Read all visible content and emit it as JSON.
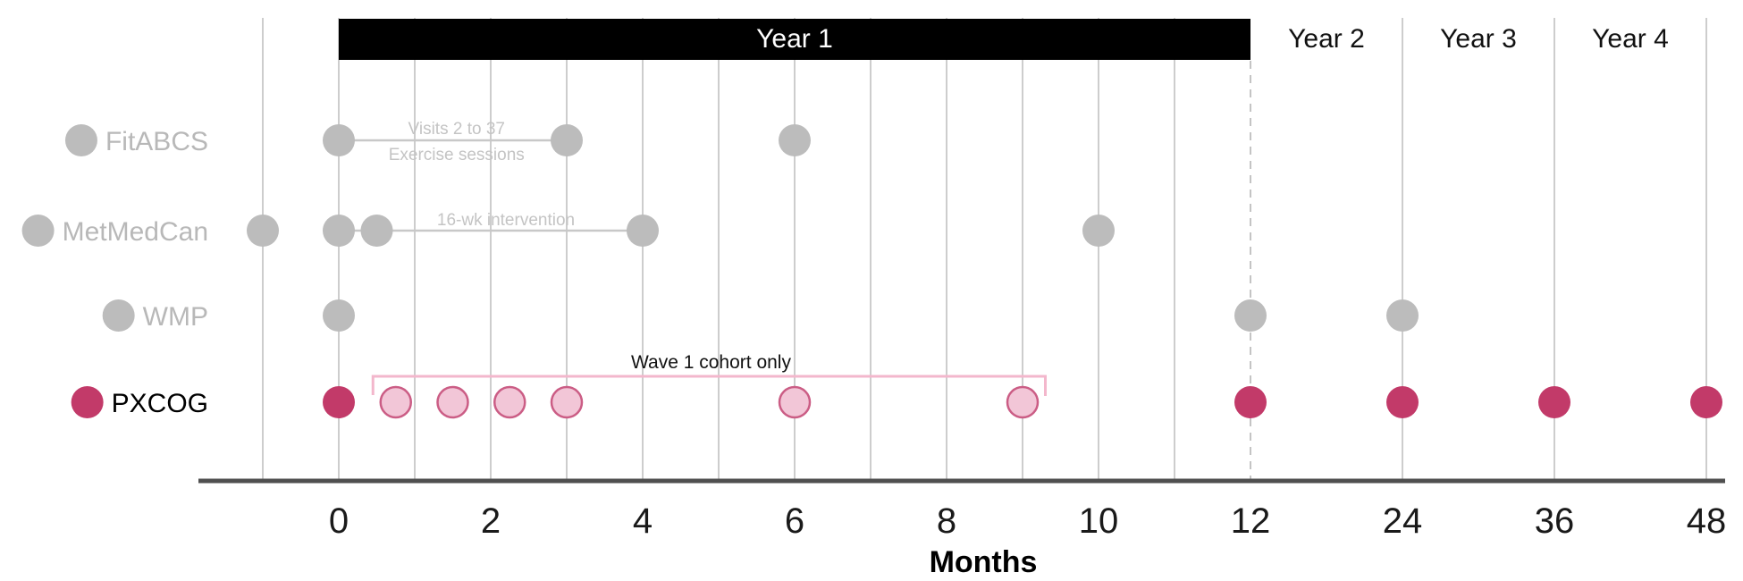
{
  "chart_data": {
    "type": "timeline",
    "title": "",
    "x_axis": {
      "label": "Months",
      "ticks": [
        {
          "month": 0,
          "label": "0"
        },
        {
          "month": 2,
          "label": "2"
        },
        {
          "month": 4,
          "label": "4"
        },
        {
          "month": 6,
          "label": "6"
        },
        {
          "month": 8,
          "label": "8"
        },
        {
          "month": 10,
          "label": "10"
        },
        {
          "month": 12,
          "label": "12"
        },
        {
          "month": 24,
          "label": "24"
        },
        {
          "month": 36,
          "label": "36"
        },
        {
          "month": 48,
          "label": "48"
        }
      ],
      "gridline_months_solid": [
        -1,
        0,
        1,
        2,
        3,
        4,
        5,
        6,
        7,
        8,
        9,
        10,
        11,
        24,
        36,
        48
      ],
      "gridline_month_dashed": 12,
      "scale_note": "linear -1 to 12 months, compressed 12 to 48 (12 months = width of 2)"
    },
    "header": {
      "year1_bar": {
        "label": "Year 1",
        "from_month": 0,
        "to_month": 12
      },
      "year_labels": [
        {
          "label": "Year 2",
          "at_month": 18
        },
        {
          "label": "Year 3",
          "at_month": 30
        },
        {
          "label": "Year 4",
          "at_month": 42
        }
      ]
    },
    "rows": [
      {
        "name": "FitABCS",
        "series": "gray",
        "assessment_months": [
          0,
          3,
          6
        ],
        "interval": {
          "from_month": 0,
          "to_month": 3,
          "label_lines": [
            "Visits 2 to 37",
            "Exercise sessions"
          ],
          "label_center_month": 1.55
        }
      },
      {
        "name": "MetMedCan",
        "series": "gray",
        "assessment_months": [
          -1,
          0,
          0.5,
          4,
          10
        ],
        "interval": {
          "from_month": 0,
          "to_month": 4,
          "label_lines": [
            "16-wk intervention"
          ],
          "label_center_month": 2.2
        }
      },
      {
        "name": "WMP",
        "series": "gray",
        "assessment_months": [
          0,
          12,
          24
        ]
      },
      {
        "name": "PXCOG",
        "series": "pink",
        "assessment_months": [
          0,
          12,
          24,
          36,
          48
        ],
        "wave1_months": [
          0.75,
          1.5,
          2.25,
          3,
          6,
          9
        ],
        "bracket": {
          "from_month": 0.45,
          "to_month": 9.3,
          "label": "Wave 1 cohort only",
          "label_center_month": 4.9
        }
      }
    ],
    "colors": {
      "gray_dot": "#bcbcbc",
      "gray_label": "#b8b8b8",
      "annotation_gray": "#c4c4c4",
      "interval_line": "#c8c8c8",
      "pink_dark": "#c23a69",
      "pink_light_fill": "#f2c6d7",
      "pink_light_stroke": "#cb5d85",
      "bracket_pink": "#f3b7cc",
      "gridline": "#cdcdcd",
      "dashed_gridline": "#c4c4c4",
      "axis": "#4f4f4f",
      "year_bar_bg": "#000000",
      "year_bar_text": "#ffffff"
    }
  }
}
